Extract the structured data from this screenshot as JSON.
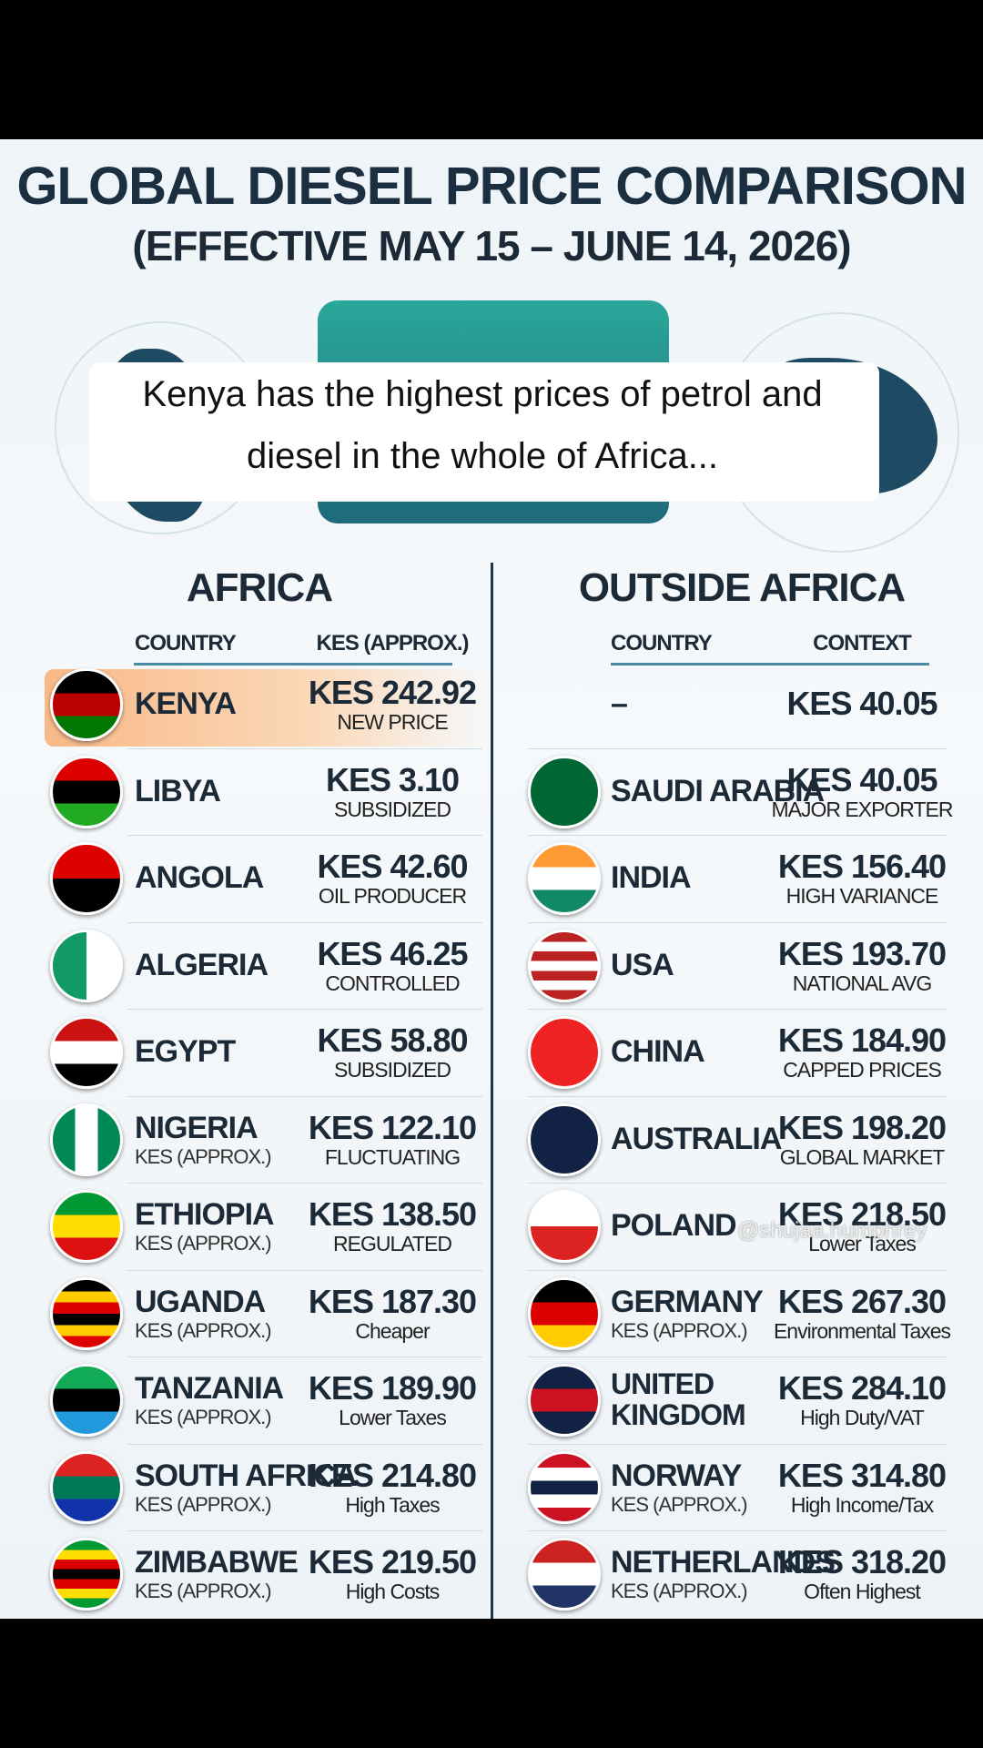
{
  "header": {
    "title": "GLOBAL DIESEL PRICE COMPARISON",
    "subtitle": "(EFFECTIVE MAY 15 – JUNE 14, 2026)"
  },
  "caption": [
    "Kenya has the highest prices of petrol and",
    "diesel in the whole of Africa..."
  ],
  "watermark": "@shujaa.humphrey",
  "africa": {
    "heading": "AFRICA",
    "columns": [
      "COUNTRY",
      "KES (APPROX.)"
    ],
    "rows": [
      {
        "country": "KENYA",
        "price": "KES 242.92",
        "note": "NEW PRICE"
      },
      {
        "country": "LIBYA",
        "price": "KES 3.10",
        "note": "SUBSIDIZED"
      },
      {
        "country": "ANGOLA",
        "price": "KES 42.60",
        "note": "OIL PRODUCER"
      },
      {
        "country": "ALGERIA",
        "price": "KES 46.25",
        "note": "CONTROLLED"
      },
      {
        "country": "EGYPT",
        "price": "KES 58.80",
        "note": "SUBSIDIZED"
      },
      {
        "country": "NIGERIA",
        "sub": "KES (APPROX.)",
        "price": "KES 122.10",
        "note": "FLUCTUATING"
      },
      {
        "country": "ETHIOPIA",
        "sub": "KES (APPROX.)",
        "price": "KES 138.50",
        "note": "REGULATED"
      },
      {
        "country": "UGANDA",
        "sub": "KES (APPROX.)",
        "price": "KES 187.30",
        "note": "Cheaper"
      },
      {
        "country": "TANZANIA",
        "sub": "KES (APPROX.)",
        "price": "KES 189.90",
        "note": "Lower Taxes"
      },
      {
        "country": "SOUTH AFRICA",
        "sub": "KES (APPROX.)",
        "price": "KES 214.80",
        "note": "High Taxes"
      },
      {
        "country": "ZIMBABWE",
        "sub": "KES (APPROX.)",
        "price": "KES 219.50",
        "note": "High Costs"
      }
    ]
  },
  "outside": {
    "heading": "OUTSIDE AFRICA",
    "columns": [
      "COUNTRY",
      "CONTEXT"
    ],
    "rows": [
      {
        "country": "–",
        "price": "KES 40.05"
      },
      {
        "country": "SAUDI ARABIA",
        "price": "KES 40.05",
        "note": "MAJOR EXPORTER"
      },
      {
        "country": "INDIA",
        "price": "KES 156.40",
        "note": "HIGH VARIANCE"
      },
      {
        "country": "USA",
        "price": "KES 193.70",
        "note": "NATIONAL AVG"
      },
      {
        "country": "CHINA",
        "price": "KES 184.90",
        "note": "CAPPED PRICES"
      },
      {
        "country": "AUSTRALIA",
        "price": "KES 198.20",
        "note": "GLOBAL MARKET"
      },
      {
        "country": "POLAND",
        "price": "KES 218.50",
        "note": "Lower Taxes"
      },
      {
        "country": "GERMANY",
        "sub": "KES (APPROX.)",
        "price": "KES 267.30",
        "note": "Environmental Taxes"
      },
      {
        "country": [
          "UNITED",
          "KINGDOM"
        ],
        "price": "KES 284.10",
        "note": "High Duty/VAT"
      },
      {
        "country": "NORWAY",
        "sub": "KES (APPROX.)",
        "price": "KES 314.80",
        "note": "High Income/Tax"
      },
      {
        "country": "NETHERLANDS",
        "sub": "KES (APPROX.)",
        "price": "KES 318.20",
        "note": "Often Highest"
      }
    ]
  }
}
